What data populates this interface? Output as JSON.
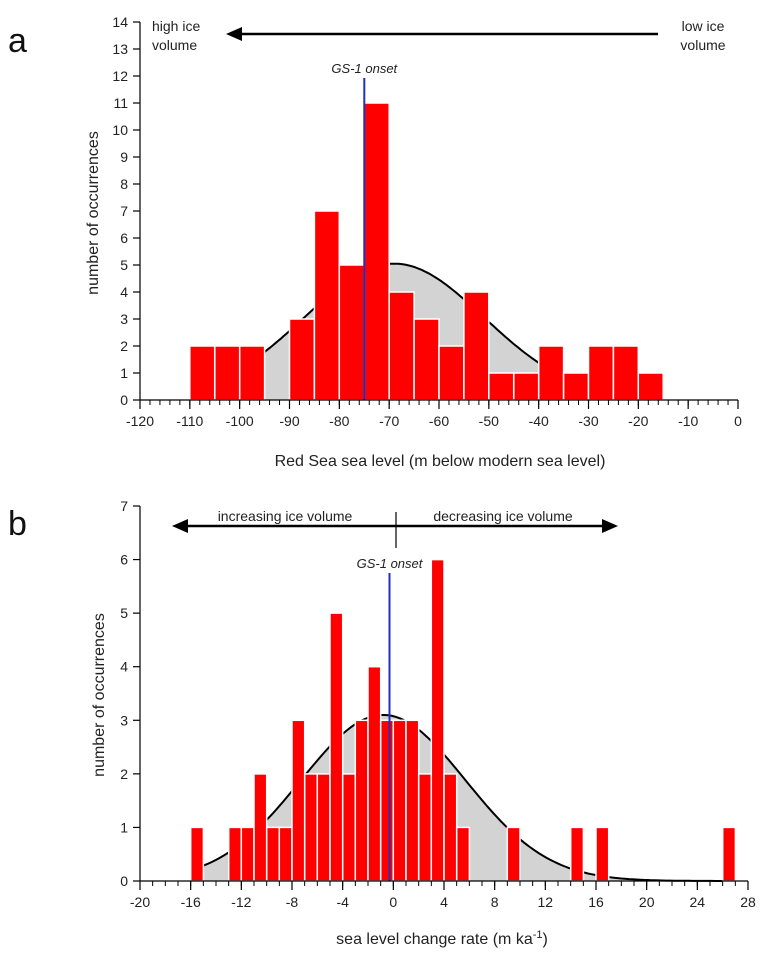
{
  "chart_data": [
    {
      "type": "bar",
      "panel_label": "a",
      "xlabel": "Red Sea sea level (m below modern sea level)",
      "ylabel": "number of occurrences",
      "xlim": [
        -120,
        0
      ],
      "ylim": [
        0,
        14
      ],
      "x_ticks": [
        -120,
        -110,
        -100,
        -90,
        -80,
        -70,
        -60,
        -50,
        -40,
        -30,
        -20,
        -10,
        0
      ],
      "y_ticks": [
        0,
        1,
        2,
        3,
        4,
        5,
        6,
        7,
        8,
        9,
        10,
        11,
        12,
        13,
        14
      ],
      "bin_width": 5,
      "bins_left": [
        -110,
        -105,
        -100,
        -90,
        -85,
        -80,
        -75,
        -70,
        -65,
        -60,
        -55,
        -50,
        -45,
        -40,
        -35,
        -30,
        -25,
        -20
      ],
      "values": [
        2,
        2,
        2,
        3,
        7,
        5,
        11,
        4,
        3,
        2,
        4,
        1,
        1,
        2,
        1,
        2,
        2,
        1
      ],
      "fit_curve": {
        "type": "normal",
        "mean": -69,
        "sd": 18,
        "peak": 5.05,
        "x_range": [
          -103,
          -28
        ]
      },
      "marker": {
        "label": "GS-1 onset",
        "x": -75,
        "color": "#1f2fbf"
      },
      "annotations": {
        "left_text_line1": "high ice",
        "left_text_line2": "volume",
        "right_text_line1": "low ice",
        "right_text_line2": "volume",
        "arrow_direction": "left"
      },
      "colors": {
        "bar": "#ff0000",
        "bar_edge": "#ffffff",
        "fit_fill": "#d3d3d3",
        "fit_line": "#000000"
      }
    },
    {
      "type": "bar",
      "panel_label": "b",
      "xlabel_main": "sea level change rate (m ka",
      "xlabel_sup": "-1",
      "xlabel_close": ")",
      "ylabel": "number of occurrences",
      "xlim": [
        -20,
        28
      ],
      "ylim": [
        0,
        7
      ],
      "x_ticks": [
        -20,
        -16,
        -12,
        -8,
        -4,
        0,
        4,
        8,
        12,
        16,
        20,
        24,
        28
      ],
      "y_ticks": [
        0,
        1,
        2,
        3,
        4,
        5,
        6,
        7
      ],
      "bin_width": 1,
      "bins_left": [
        -16,
        -13,
        -12,
        -11,
        -10,
        -9,
        -8,
        -7,
        -6,
        -5,
        -4,
        -3,
        -2,
        -1,
        0,
        1,
        2,
        3,
        4,
        5,
        9,
        14,
        16,
        26
      ],
      "values": [
        1,
        1,
        1,
        2,
        1,
        1,
        3,
        2,
        2,
        5,
        2,
        3,
        4,
        3,
        3,
        3,
        2,
        6,
        2,
        1,
        1,
        1,
        1,
        1
      ],
      "fit_curve": {
        "type": "normal",
        "mean": -0.8,
        "sd": 6.5,
        "peak": 3.1,
        "x_range": [
          -15.5,
          26
        ]
      },
      "marker": {
        "label": "GS-1 onset",
        "x": -0.3,
        "color": "#1f2fbf"
      },
      "annotations": {
        "left_text": "increasing ice volume",
        "right_text": "decreasing ice volume",
        "arrow_direction": "both"
      },
      "colors": {
        "bar": "#ff0000",
        "bar_edge": "#ffffff",
        "fit_fill": "#d3d3d3",
        "fit_line": "#000000"
      }
    }
  ]
}
